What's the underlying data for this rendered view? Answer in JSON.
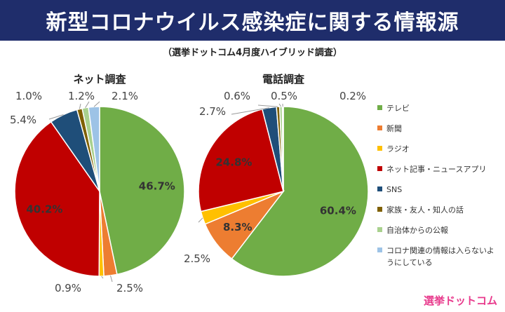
{
  "header": {
    "title": "新型コロナウイルス感染症に関する情報源",
    "subtitle": "（選挙ドットコム4月度ハイブリッド調査）"
  },
  "logo": {
    "text": "選挙ドットコム"
  },
  "colors": [
    "#70ad47",
    "#ed7d31",
    "#ffc000",
    "#c00000",
    "#1f4e79",
    "#7f6000",
    "#a9d18e",
    "#9dc3e6"
  ],
  "chart_data": [
    {
      "type": "pie",
      "title": "ネット調査",
      "categories": [
        "テレビ",
        "新聞",
        "ラジオ",
        "ネット記事・ニュースアプリ",
        "SNS",
        "家族・友人・知人の話",
        "自治体からの公報",
        "コロナ関連の情報は入らないようにしている"
      ],
      "values": [
        46.7,
        2.5,
        0.9,
        40.2,
        5.4,
        1.0,
        1.2,
        2.1
      ],
      "labels": [
        "46.7%",
        "2.5%",
        "0.9%",
        "40.2%",
        "5.4%",
        "1.0%",
        "1.2%",
        "2.1%"
      ],
      "legend": "right"
    },
    {
      "type": "pie",
      "title": "電話調査",
      "categories": [
        "テレビ",
        "新聞",
        "ラジオ",
        "ネット記事・ニュースアプリ",
        "SNS",
        "家族・友人・知人の話",
        "自治体からの公報",
        "コロナ関連の情報は入らないようにしている"
      ],
      "values": [
        60.4,
        8.3,
        2.5,
        24.8,
        2.7,
        0.6,
        0.5,
        0.2
      ],
      "labels": [
        "60.4%",
        "8.3%",
        "2.5%",
        "24.8%",
        "2.7%",
        "0.6%",
        "0.5%",
        "0.2%"
      ],
      "legend": "right"
    }
  ],
  "legend": {
    "items": [
      {
        "label": "テレビ"
      },
      {
        "label": "新聞"
      },
      {
        "label": "ラジオ"
      },
      {
        "label": "ネット記事・ニュースアプリ"
      },
      {
        "label": "SNS"
      },
      {
        "label": "家族・友人・知人の話"
      },
      {
        "label": "自治体からの公報"
      },
      {
        "label": "コロナ関連の情報は入らないようにしている"
      }
    ]
  }
}
